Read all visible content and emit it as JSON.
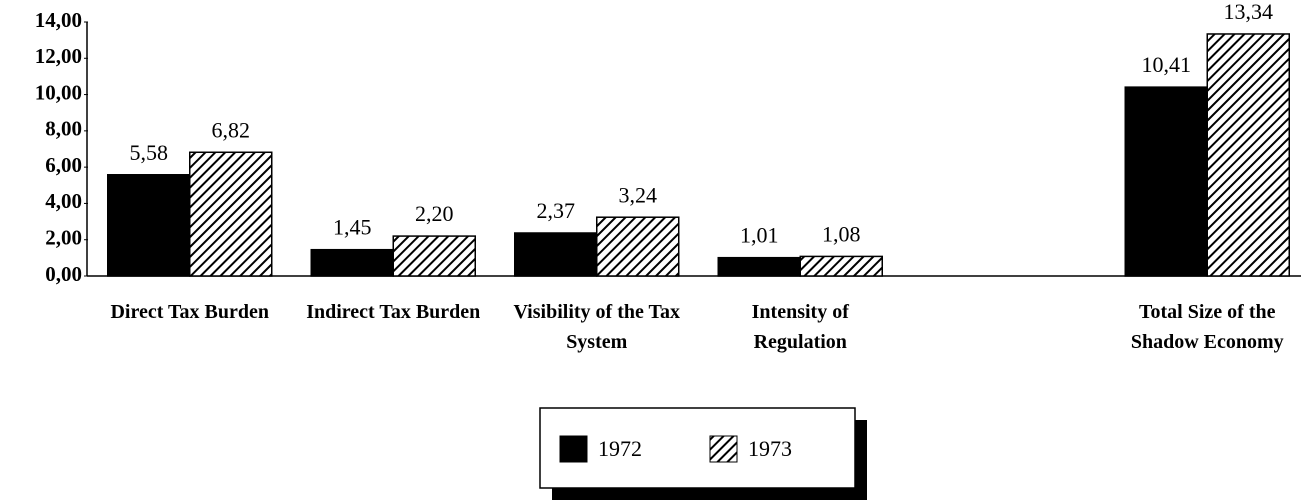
{
  "chart_data": {
    "type": "bar",
    "categories": [
      "Direct Tax Burden",
      "Indirect Tax Burden",
      "Visibility of the Tax System",
      "Intensity of Regulation",
      null,
      "Total Size of the Shadow Economy"
    ],
    "series": [
      {
        "name": "1972",
        "color": "#000000",
        "values": [
          5.58,
          1.45,
          2.37,
          1.01,
          null,
          10.41
        ],
        "value_labels": [
          "5,58",
          "1,45",
          "2,37",
          "1,01",
          null,
          "10,41"
        ]
      },
      {
        "name": "1973",
        "color": "#000000",
        "hatch": true,
        "values": [
          6.82,
          2.2,
          3.24,
          1.08,
          null,
          13.34
        ],
        "value_labels": [
          "6,82",
          "2,20",
          "3,24",
          "1,08",
          null,
          "13,34"
        ]
      }
    ],
    "ylim": [
      0,
      14
    ],
    "yticks": [
      {
        "value": 0,
        "label": "0,00"
      },
      {
        "value": 2,
        "label": "2,00"
      },
      {
        "value": 4,
        "label": "4,00"
      },
      {
        "value": 6,
        "label": "6,00"
      },
      {
        "value": 8,
        "label": "8,00"
      },
      {
        "value": 10,
        "label": "10,00"
      },
      {
        "value": 12,
        "label": "12,00"
      },
      {
        "value": 14,
        "label": "14,00"
      }
    ],
    "grid": false,
    "legend": "bottom"
  }
}
